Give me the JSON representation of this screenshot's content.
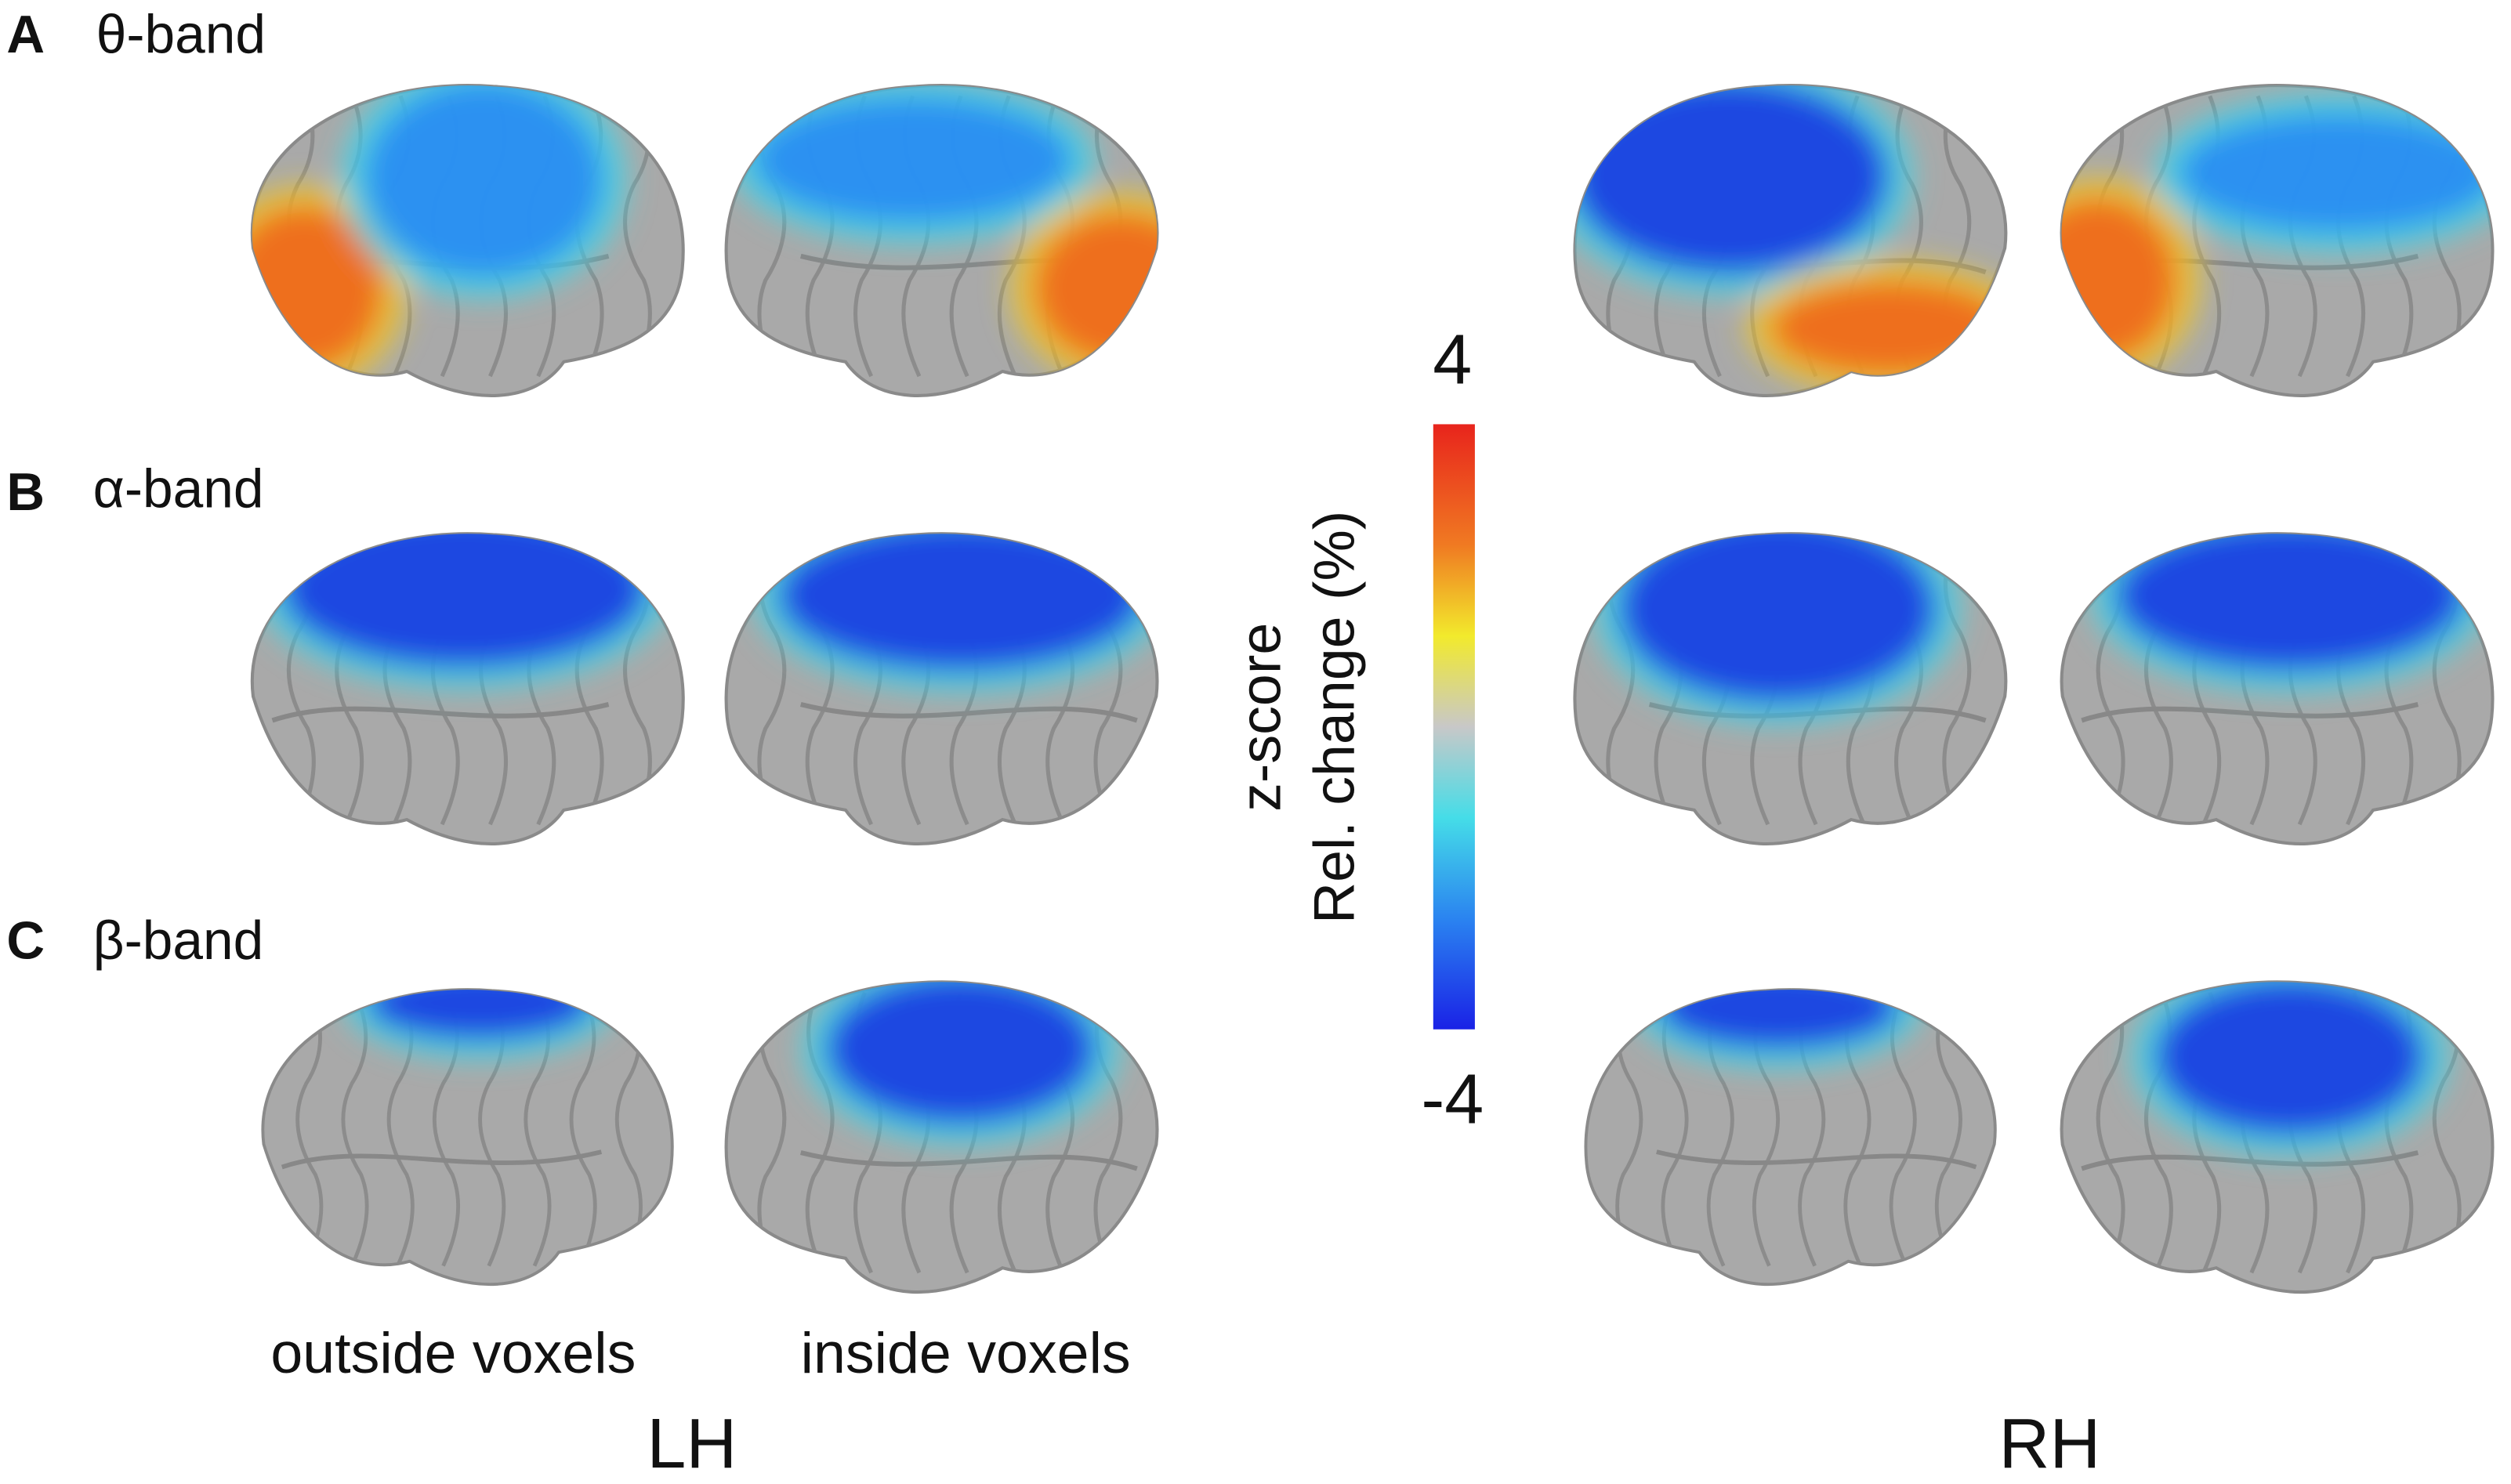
{
  "panels": [
    {
      "letter": "A",
      "band": "θ-band"
    },
    {
      "letter": "B",
      "band": "α-band"
    },
    {
      "letter": "C",
      "band": "β-band"
    }
  ],
  "colorbar": {
    "max": 4,
    "min": -4,
    "title": [
      "z-score",
      "Rel. change (%)"
    ]
  },
  "column_labels": [
    "outside voxels",
    "inside voxels"
  ],
  "hemispheres": [
    "LH",
    "RH"
  ]
}
